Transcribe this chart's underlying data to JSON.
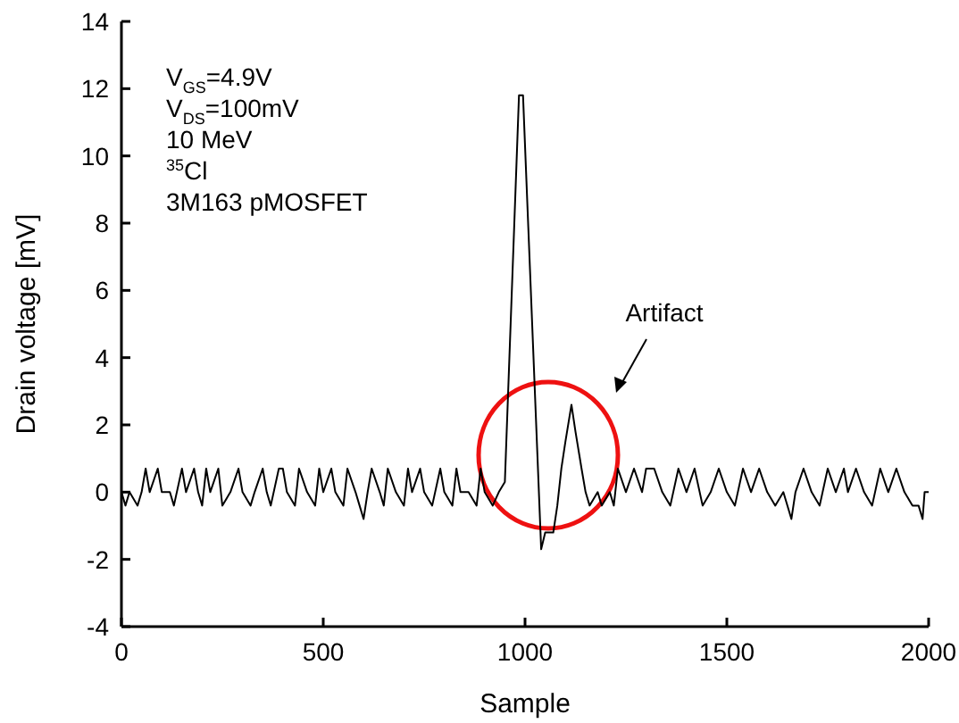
{
  "chart_data": {
    "type": "line",
    "xlabel": "Sample",
    "ylabel": "Drain voltage [mV]",
    "xlim": [
      0,
      2000
    ],
    "xticks": [
      0,
      500,
      1000,
      1500,
      2000
    ],
    "ylim": [
      -4,
      14
    ],
    "yticks": [
      -4,
      -2,
      0,
      2,
      4,
      6,
      8,
      10,
      12,
      14
    ],
    "marker": "none",
    "line_style": "solid",
    "annotations": [
      "V$_{GS}$=4.9V",
      "V$_{DS}$=100mV",
      "10 MeV",
      "$^{35}$Cl",
      "3M163 pMOSFET",
      "Artifact"
    ],
    "series": [
      {
        "color": "#000000",
        "x": [
          0,
          10,
          20,
          40,
          50,
          60,
          70,
          90,
          100,
          120,
          130,
          150,
          160,
          180,
          190,
          200,
          210,
          220,
          240,
          250,
          270,
          290,
          300,
          320,
          330,
          350,
          360,
          370,
          390,
          400,
          410,
          430,
          440,
          460,
          480,
          490,
          500,
          520,
          530,
          550,
          560,
          580,
          590,
          600,
          610,
          620,
          640,
          650,
          660,
          680,
          700,
          710,
          720,
          740,
          750,
          770,
          790,
          800,
          820,
          830,
          840,
          860,
          880,
          890,
          900,
          920,
          935,
          950,
          985,
          995,
          1040,
          1050,
          1070,
          1080,
          1090,
          1100,
          1115,
          1125,
          1140,
          1150,
          1160,
          1180,
          1190,
          1210,
          1220,
          1230,
          1250,
          1270,
          1290,
          1300,
          1320,
          1340,
          1360,
          1380,
          1400,
          1420,
          1440,
          1460,
          1480,
          1500,
          1520,
          1540,
          1560,
          1580,
          1600,
          1620,
          1640,
          1660,
          1670,
          1690,
          1710,
          1730,
          1750,
          1770,
          1790,
          1800,
          1820,
          1840,
          1860,
          1880,
          1900,
          1920,
          1940,
          1960,
          1975,
          1985,
          1990,
          2000
        ],
        "values": [
          0,
          -0.4,
          0,
          -0.4,
          0,
          0.7,
          0,
          0.7,
          0,
          0,
          -0.4,
          0.7,
          0,
          0.7,
          0,
          -0.4,
          0.7,
          0,
          0.7,
          -0.4,
          0,
          0.7,
          0,
          -0.4,
          0,
          0.7,
          0,
          -0.4,
          0.7,
          0.7,
          0,
          -0.4,
          0.7,
          0,
          -0.4,
          0.7,
          0,
          0.7,
          0,
          -0.4,
          0.7,
          0,
          -0.4,
          -0.8,
          0,
          0.7,
          0,
          -0.4,
          0.7,
          0,
          -0.4,
          0.7,
          0,
          0.7,
          0,
          -0.4,
          0.7,
          0,
          -0.4,
          0.7,
          0,
          0,
          -0.4,
          0.7,
          0,
          -0.4,
          0,
          0.3,
          11.8,
          11.8,
          -1.7,
          -1.2,
          -1.2,
          -0.4,
          0.7,
          1.5,
          2.6,
          1.8,
          0.7,
          0,
          -0.4,
          0,
          -0.4,
          0,
          -0.4,
          0.7,
          0,
          0.7,
          0,
          0.7,
          0.7,
          0,
          -0.4,
          0.7,
          0,
          0.7,
          -0.4,
          0,
          0.7,
          0,
          -0.4,
          0.7,
          0,
          0.7,
          0,
          -0.4,
          0,
          -0.8,
          0,
          0.7,
          0,
          -0.4,
          0.7,
          0,
          0.7,
          0,
          0.7,
          0,
          -0.4,
          0.7,
          0,
          0.7,
          0,
          -0.4,
          -0.4,
          -0.8,
          0,
          0
        ]
      }
    ]
  }
}
